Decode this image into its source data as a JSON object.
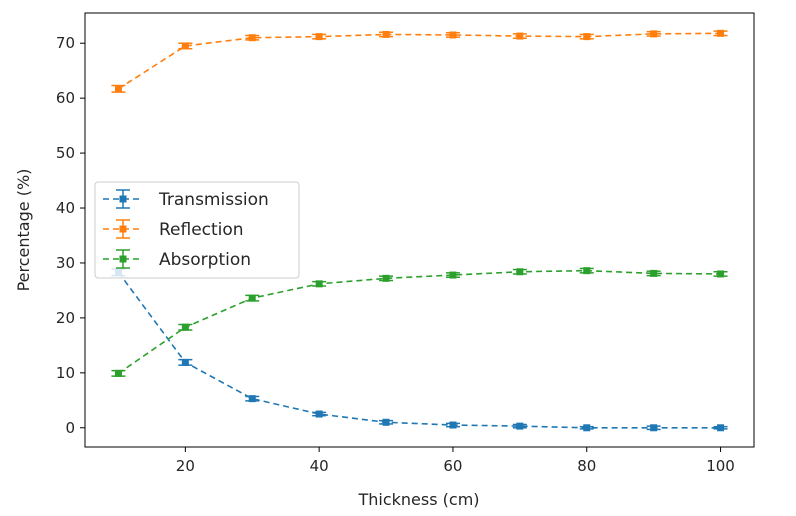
{
  "chart_data": {
    "type": "line",
    "title": "",
    "xlabel": "Thickness (cm)",
    "ylabel": "Percentage (%)",
    "xlim": [
      5,
      105
    ],
    "ylim": [
      -3.5,
      75.5
    ],
    "x_ticks": [
      20,
      40,
      60,
      80,
      100
    ],
    "y_ticks": [
      0,
      10,
      20,
      30,
      40,
      50,
      60,
      70
    ],
    "grid": false,
    "legend_position": "center-left",
    "line_style": "dashed",
    "marker": "square",
    "error_bars": true,
    "x": [
      10,
      20,
      30,
      40,
      50,
      60,
      70,
      80,
      90,
      100
    ],
    "series": [
      {
        "name": "Transmission",
        "color": "#1f77b4",
        "values": [
          28.3,
          11.9,
          5.3,
          2.5,
          1.0,
          0.5,
          0.3,
          0.0,
          0.0,
          0.0
        ],
        "error": [
          0.6,
          0.5,
          0.4,
          0.3,
          0.3,
          0.3,
          0.3,
          0.2,
          0.3,
          0.2
        ]
      },
      {
        "name": "Reflection",
        "color": "#ff7f0e",
        "values": [
          61.7,
          69.5,
          71.0,
          71.2,
          71.6,
          71.5,
          71.3,
          71.2,
          71.7,
          71.8
        ],
        "error": [
          0.6,
          0.5,
          0.4,
          0.4,
          0.4,
          0.4,
          0.4,
          0.4,
          0.4,
          0.4
        ]
      },
      {
        "name": "Absorption",
        "color": "#2ca02c",
        "values": [
          9.9,
          18.3,
          23.6,
          26.2,
          27.2,
          27.8,
          28.4,
          28.6,
          28.1,
          28.0
        ],
        "error": [
          0.5,
          0.5,
          0.5,
          0.4,
          0.4,
          0.4,
          0.4,
          0.4,
          0.4,
          0.4
        ]
      }
    ]
  }
}
